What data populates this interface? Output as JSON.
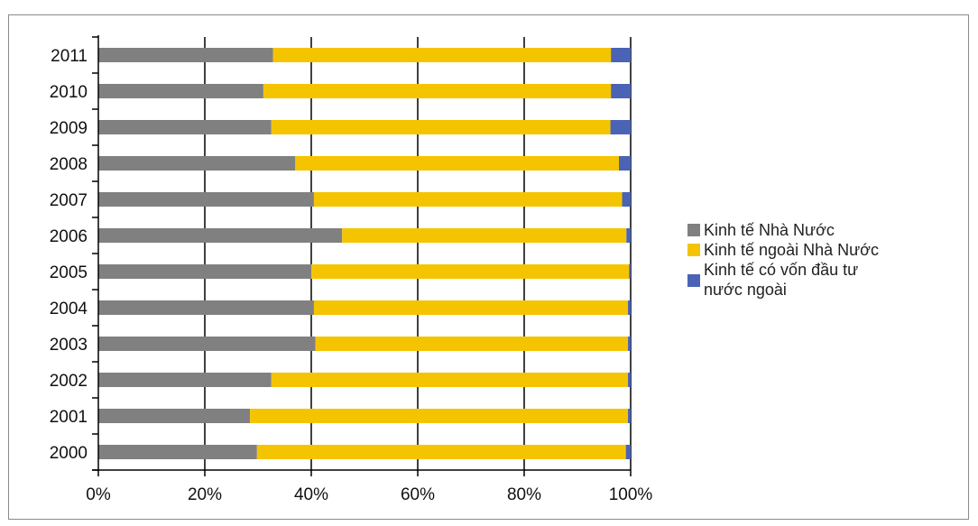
{
  "chart_data": {
    "type": "bar",
    "orientation": "horizontal",
    "stacked": "percent",
    "categories": [
      "2000",
      "2001",
      "2002",
      "2003",
      "2004",
      "2005",
      "2006",
      "2007",
      "2008",
      "2009",
      "2010",
      "2011"
    ],
    "series": [
      {
        "name": "Kinh tế Nhà Nước",
        "color": "#808080",
        "values": [
          29.8,
          28.5,
          32.5,
          40.8,
          40.5,
          40.0,
          45.8,
          40.5,
          37.0,
          32.5,
          31.0,
          32.8
        ]
      },
      {
        "name": "Kinh tế ngoài Nhà Nước",
        "color": "#f5c400",
        "values": [
          69.3,
          71.0,
          67.0,
          58.7,
          59.0,
          59.7,
          53.4,
          57.9,
          60.8,
          63.7,
          65.3,
          63.5
        ]
      },
      {
        "name": "Kinh tế có vốn đầu tư nước ngoài",
        "color": "#4a63b5",
        "values": [
          0.9,
          0.5,
          0.5,
          0.5,
          0.5,
          0.3,
          0.8,
          1.6,
          2.2,
          3.8,
          3.7,
          3.7
        ]
      }
    ],
    "x_ticks": [
      "0%",
      "20%",
      "40%",
      "60%",
      "80%",
      "100%"
    ],
    "xlim": [
      0,
      100
    ],
    "grid": "vertical",
    "legend": "right",
    "legend_lines": [
      [
        "Kinh tế Nhà Nước"
      ],
      [
        "Kinh tế ngoài Nhà Nước"
      ],
      [
        "Kinh tế có vốn đầu tư",
        "nước ngoài"
      ]
    ]
  }
}
